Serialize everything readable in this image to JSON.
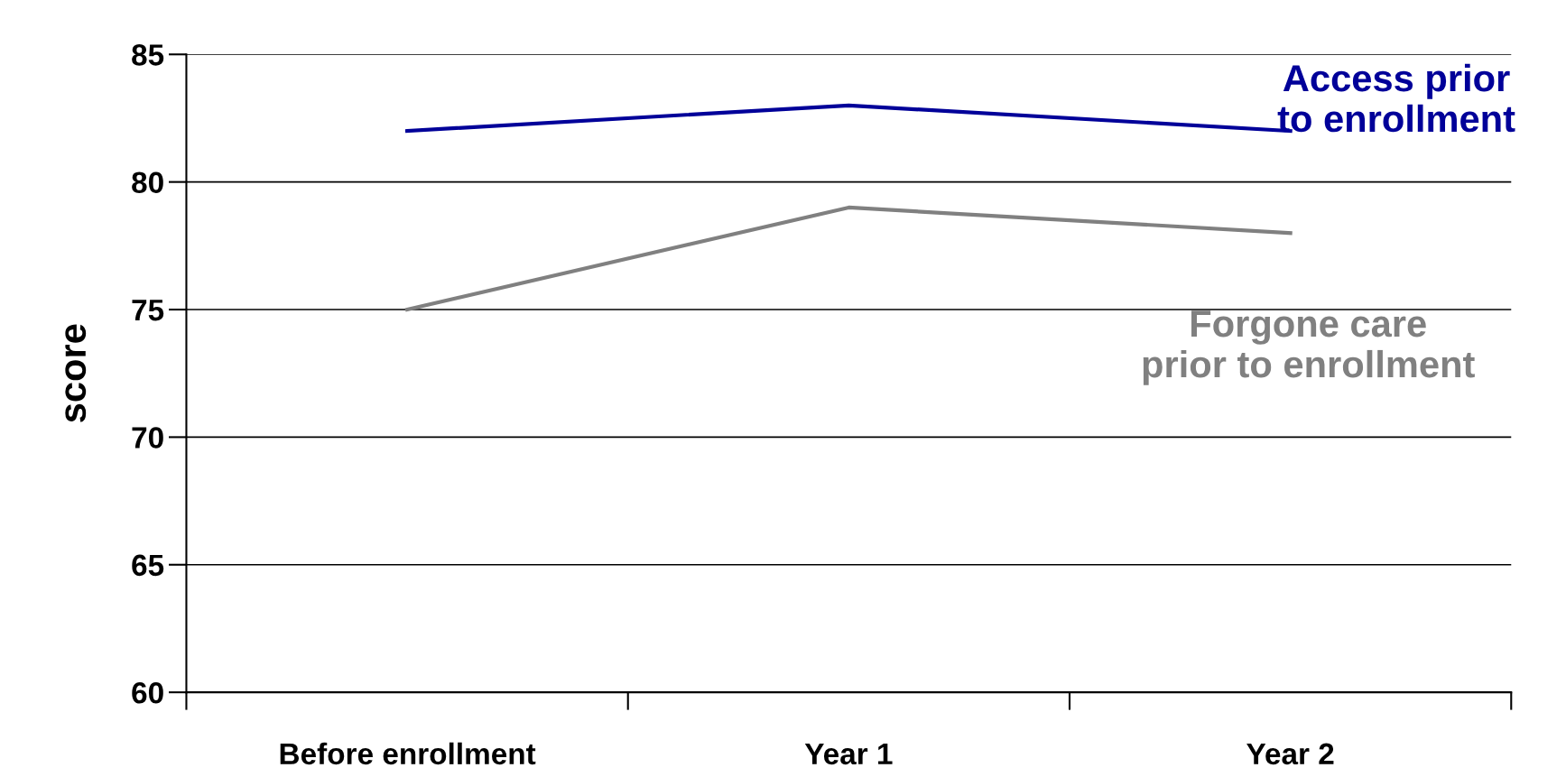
{
  "chart_data": {
    "type": "line",
    "ylabel": "score",
    "categories": [
      "Before enrollment",
      "Year 1",
      "Year 2"
    ],
    "series": [
      {
        "name": "Access prior to enrollment",
        "color": "#000099",
        "values": [
          82,
          83,
          82
        ]
      },
      {
        "name": "Forgone care prior to enrollment",
        "color": "#808080",
        "values": [
          75,
          79,
          78
        ]
      }
    ],
    "ylim": [
      60,
      85
    ],
    "yticks": [
      60,
      65,
      70,
      75,
      80,
      85
    ],
    "grid": "y",
    "legend": false,
    "marker": "none",
    "line_style": "solid"
  }
}
